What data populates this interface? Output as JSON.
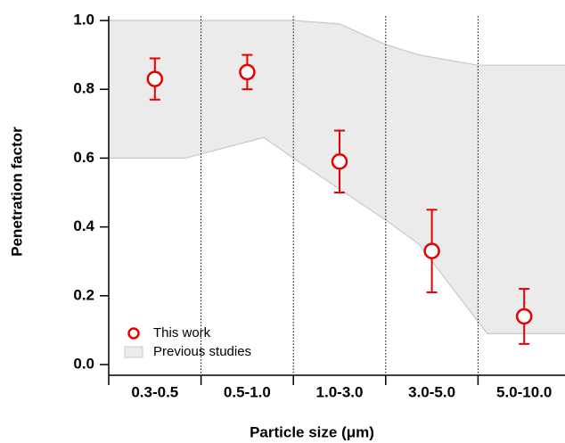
{
  "chart_data": {
    "type": "errorbar",
    "x_label": "Particle size (μm)",
    "y_label": "Penetration factor",
    "categories": [
      "0.3-0.5",
      "0.5-1.0",
      "1.0-3.0",
      "3.0-5.0",
      "5.0-10.0"
    ],
    "series": [
      {
        "name": "This work",
        "color": "#e60000",
        "values": [
          0.83,
          0.85,
          0.59,
          0.33,
          0.14
        ],
        "errors": [
          0.06,
          0.05,
          0.09,
          0.12,
          0.08
        ]
      }
    ],
    "area": {
      "name": "Previous studies",
      "color": "#ebebeb",
      "x": [
        0,
        0.83,
        1.68,
        2,
        2.5,
        3,
        3.36,
        4,
        4.1,
        5
      ],
      "upper": [
        1.0,
        1.0,
        1.0,
        1.0,
        0.99,
        0.93,
        0.9,
        0.87,
        0.87,
        0.87
      ],
      "lower": [
        0.6,
        0.6,
        0.66,
        0.6,
        0.51,
        0.42,
        0.35,
        0.125,
        0.09,
        0.09
      ]
    },
    "ylim": [
      0,
      1
    ],
    "yticks": [
      {
        "value": 0,
        "label": "0.0"
      },
      0.2,
      0.4,
      0.6,
      0.8,
      {
        "value": 1,
        "label": "1.0"
      }
    ],
    "legend": "lower left"
  }
}
